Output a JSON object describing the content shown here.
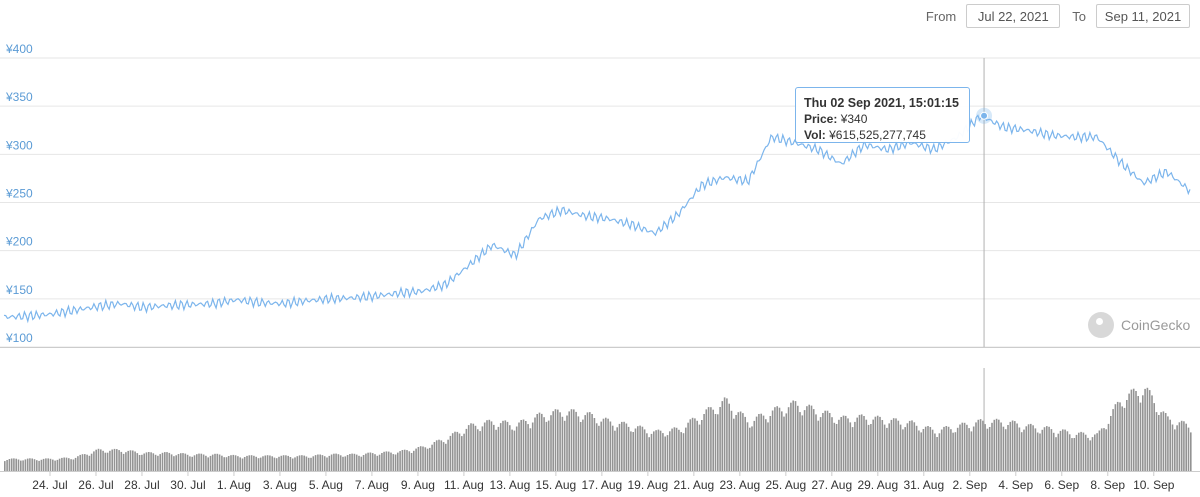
{
  "range": {
    "from_label": "From",
    "from_value": "Jul 22, 2021",
    "to_label": "To",
    "to_value": "Sep 11, 2021"
  },
  "tooltip": {
    "title": "Thu 02 Sep 2021, 15:01:15",
    "price_label": "Price:",
    "price_value": "¥340",
    "vol_label": "Vol:",
    "vol_value": "¥615,525,277,745"
  },
  "brand": {
    "name": "CoinGecko",
    "icon": "gecko-logo-icon"
  },
  "colors": {
    "line": "#7cb5ec",
    "volume": "#808080",
    "grid": "#e6e6e6",
    "axis_text": "#5b9bd5",
    "text": "#333333"
  },
  "chart_data": {
    "type": "line",
    "x_type": "date",
    "series": [
      {
        "name": "Price",
        "x": [
          "2021-07-22",
          "2021-07-23",
          "2021-07-24",
          "2021-07-25",
          "2021-07-26",
          "2021-07-27",
          "2021-07-28",
          "2021-07-29",
          "2021-07-30",
          "2021-07-31",
          "2021-08-01",
          "2021-08-02",
          "2021-08-03",
          "2021-08-04",
          "2021-08-05",
          "2021-08-06",
          "2021-08-07",
          "2021-08-08",
          "2021-08-09",
          "2021-08-10",
          "2021-08-11",
          "2021-08-12",
          "2021-08-13",
          "2021-08-14",
          "2021-08-15",
          "2021-08-16",
          "2021-08-17",
          "2021-08-18",
          "2021-08-19",
          "2021-08-20",
          "2021-08-21",
          "2021-08-22",
          "2021-08-23",
          "2021-08-24",
          "2021-08-25",
          "2021-08-26",
          "2021-08-27",
          "2021-08-28",
          "2021-08-29",
          "2021-08-30",
          "2021-08-31",
          "2021-09-01",
          "2021-09-02",
          "2021-09-03",
          "2021-09-04",
          "2021-09-05",
          "2021-09-06",
          "2021-09-07",
          "2021-09-08",
          "2021-09-09",
          "2021-09-10",
          "2021-09-11"
        ],
        "values": [
          131,
          132,
          134,
          138,
          142,
          145,
          141,
          143,
          144,
          145,
          149,
          146,
          145,
          148,
          150,
          151,
          153,
          156,
          158,
          165,
          185,
          206,
          195,
          233,
          242,
          236,
          233,
          227,
          218,
          238,
          268,
          276,
          272,
          318,
          312,
          305,
          290,
          310,
          305,
          312,
          305,
          318,
          340,
          328,
          325,
          320,
          318,
          318,
          292,
          270,
          282,
          262
        ]
      },
      {
        "name": "Volume",
        "values": [
          8,
          8,
          8,
          9,
          14,
          14,
          12,
          12,
          11,
          11,
          10,
          10,
          10,
          10,
          11,
          11,
          12,
          13,
          16,
          22,
          30,
          33,
          31,
          37,
          40,
          38,
          33,
          30,
          26,
          28,
          38,
          47,
          33,
          40,
          45,
          40,
          35,
          36,
          34,
          32,
          27,
          30,
          33,
          33,
          30,
          28,
          25,
          24,
          48,
          56,
          35,
          30
        ]
      }
    ],
    "y_ticks": [
      "¥100",
      "¥150",
      "¥200",
      "¥250",
      "¥300",
      "¥350",
      "¥400"
    ],
    "ylim": [
      100,
      400
    ],
    "x_ticks": [
      "24. Jul",
      "26. Jul",
      "28. Jul",
      "30. Jul",
      "1. Aug",
      "3. Aug",
      "5. Aug",
      "7. Aug",
      "9. Aug",
      "11. Aug",
      "13. Aug",
      "15. Aug",
      "17. Aug",
      "19. Aug",
      "21. Aug",
      "23. Aug",
      "25. Aug",
      "27. Aug",
      "29. Aug",
      "31. Aug",
      "2. Sep",
      "4. Sep",
      "6. Sep",
      "8. Sep",
      "10. Sep"
    ],
    "x_tick_dates": [
      "2021-07-24",
      "2021-07-26",
      "2021-07-28",
      "2021-07-30",
      "2021-08-01",
      "2021-08-03",
      "2021-08-05",
      "2021-08-07",
      "2021-08-09",
      "2021-08-11",
      "2021-08-13",
      "2021-08-15",
      "2021-08-17",
      "2021-08-19",
      "2021-08-21",
      "2021-08-23",
      "2021-08-25",
      "2021-08-27",
      "2021-08-29",
      "2021-08-31",
      "2021-09-02",
      "2021-09-04",
      "2021-09-06",
      "2021-09-08",
      "2021-09-10"
    ],
    "hover_date": "2021-09-02",
    "hover_value": 340,
    "grid": true
  }
}
